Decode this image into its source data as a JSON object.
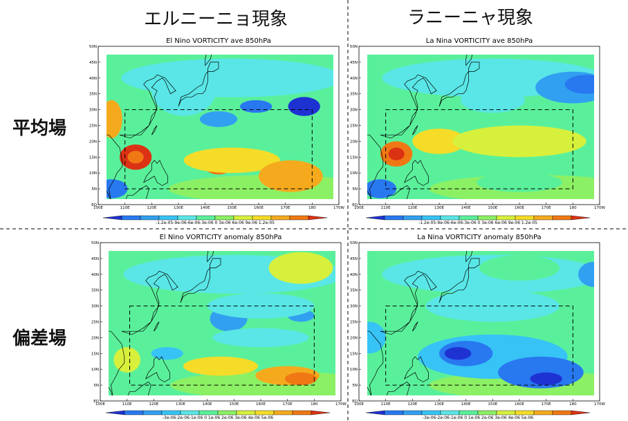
{
  "headers": {
    "col_left": "エルニーニョ現象",
    "col_right": "ラニーニャ現象",
    "row_top": "平均場",
    "row_bottom": "偏差場"
  },
  "colors": {
    "scale_a": [
      "#1e32d2",
      "#2878f0",
      "#32a0f0",
      "#37c3f5",
      "#5ae6e6",
      "#5af09b",
      "#8cf064",
      "#d7f03c",
      "#f5dc28",
      "#f5aa1e",
      "#f07814",
      "#dc3214"
    ],
    "scale_b": [
      "#1e32d2",
      "#2878f0",
      "#32a0f0",
      "#37c3f5",
      "#5ae6e6",
      "#5af09b",
      "#8cf064",
      "#d7f03c",
      "#f5dc28",
      "#f5aa1e",
      "#f07814",
      "#dc3214"
    ]
  },
  "chart_data": [
    {
      "type": "heatmap",
      "title": "El Nino VORTICITY ave 850hPa",
      "x_ticks": [
        "100E",
        "110E",
        "120E",
        "130E",
        "140E",
        "150E",
        "160E",
        "170E",
        "180",
        "170W"
      ],
      "y_ticks": [
        "EQ",
        "5N",
        "10N",
        "15N",
        "20N",
        "25N",
        "30N",
        "35N",
        "40N",
        "45N",
        "50N"
      ],
      "xlim": [
        100,
        190
      ],
      "ylim": [
        0,
        50
      ],
      "colorbar": [
        "-1.2e-05",
        "-9e-06",
        "-6e-06",
        "-3e-06",
        "0",
        "3e-06",
        "6e-06",
        "9e-06",
        "1.2e-05"
      ],
      "colorbar_label_text": "-1.2e-05-9e-06-6e-06-3e-06  0  3e-06 6e-06 9e-06 1.2e-05",
      "scale": "scale_a",
      "box": {
        "lon": [
          110,
          180
        ],
        "lat": [
          5,
          30
        ]
      },
      "features": [
        {
          "lon": 114,
          "lat": 15,
          "rx": 6,
          "ry": 4,
          "level": 11
        },
        {
          "lon": 114,
          "lat": 15,
          "rx": 3,
          "ry": 2,
          "level": 10
        },
        {
          "lon": 145,
          "lat": 12,
          "rx": 5,
          "ry": 2.5,
          "level": 10
        },
        {
          "lon": 150,
          "lat": 14,
          "rx": 18,
          "ry": 4,
          "level": 8
        },
        {
          "lon": 172,
          "lat": 9,
          "rx": 12,
          "ry": 5,
          "level": 9
        },
        {
          "lon": 145,
          "lat": 27,
          "rx": 7,
          "ry": 2.5,
          "level": 2
        },
        {
          "lon": 159,
          "lat": 31,
          "rx": 6,
          "ry": 2,
          "level": 1
        },
        {
          "lon": 177,
          "lat": 31,
          "rx": 6,
          "ry": 3,
          "level": 0
        },
        {
          "lon": 105,
          "lat": 5,
          "rx": 6,
          "ry": 3,
          "level": 1
        },
        {
          "lon": 132,
          "lat": 36,
          "rx": 12,
          "ry": 8,
          "level": 4
        },
        {
          "lon": 105,
          "lat": 27,
          "rx": 4,
          "ry": 6,
          "level": 9
        }
      ]
    },
    {
      "type": "heatmap",
      "title": "La Nina VORTICITY ave 850hPa",
      "x_ticks": [
        "100E",
        "110E",
        "120E",
        "130E",
        "140E",
        "150E",
        "160E",
        "170E",
        "180",
        "170W"
      ],
      "y_ticks": [
        "EQ",
        "5N",
        "10N",
        "15N",
        "20N",
        "25N",
        "30N",
        "35N",
        "40N",
        "45N",
        "50N"
      ],
      "xlim": [
        100,
        190
      ],
      "ylim": [
        0,
        50
      ],
      "colorbar": [
        "-1.2e-05",
        "-9e-06",
        "-6e-06",
        "-3e-06",
        "0",
        "3e-06",
        "6e-06",
        "9e-06",
        "1.2e-05"
      ],
      "colorbar_label_text": "-1.2e-05-9e-06-6e-06-3e-06  0  3e-06 6e-06 9e-06 1.2e-05",
      "scale": "scale_a",
      "box": {
        "lon": [
          110,
          180
        ],
        "lat": [
          5,
          30
        ]
      },
      "features": [
        {
          "lon": 114,
          "lat": 16,
          "rx": 6,
          "ry": 4,
          "level": 10
        },
        {
          "lon": 114,
          "lat": 16,
          "rx": 3,
          "ry": 2,
          "level": 11
        },
        {
          "lon": 130,
          "lat": 20,
          "rx": 10,
          "ry": 4,
          "level": 8
        },
        {
          "lon": 160,
          "lat": 20,
          "rx": 25,
          "ry": 5,
          "level": 7
        },
        {
          "lon": 180,
          "lat": 37,
          "rx": 14,
          "ry": 5,
          "level": 2
        },
        {
          "lon": 185,
          "lat": 38,
          "rx": 8,
          "ry": 3,
          "level": 1
        },
        {
          "lon": 160,
          "lat": 7,
          "rx": 16,
          "ry": 3,
          "level": 5
        },
        {
          "lon": 108,
          "lat": 5,
          "rx": 6,
          "ry": 3,
          "level": 1
        },
        {
          "lon": 150,
          "lat": 33,
          "rx": 12,
          "ry": 4,
          "level": 4
        }
      ]
    },
    {
      "type": "heatmap",
      "title": "El Nino VORTICITY anomaly 850hPa",
      "x_ticks": [
        "100E",
        "110E",
        "120E",
        "130E",
        "140E",
        "150E",
        "160E",
        "170E",
        "180",
        "170W"
      ],
      "y_ticks": [
        "EQ",
        "5N",
        "10N",
        "15N",
        "20N",
        "25N",
        "30N",
        "35N",
        "40N",
        "45N",
        "50N"
      ],
      "xlim": [
        100,
        190
      ],
      "ylim": [
        0,
        50
      ],
      "colorbar": [
        "-3e-06",
        "-2e-06",
        "-1e-06",
        "0",
        "1e-06",
        "2e-06",
        "3e-06",
        "4e-06",
        "5e-06"
      ],
      "colorbar_label_text": "-3e-06-2e-06-1e-06  0   1e-06 2e-06 3e-06 4e-06 5e-06",
      "scale": "scale_b",
      "box": {
        "lon": [
          111,
          180
        ],
        "lat": [
          5,
          30
        ]
      },
      "features": [
        {
          "lon": 148,
          "lat": 26,
          "rx": 7,
          "ry": 4,
          "level": 2
        },
        {
          "lon": 175,
          "lat": 27,
          "rx": 5,
          "ry": 2,
          "level": 2
        },
        {
          "lon": 160,
          "lat": 30,
          "rx": 20,
          "ry": 4,
          "level": 4
        },
        {
          "lon": 160,
          "lat": 20,
          "rx": 18,
          "ry": 3,
          "level": 4
        },
        {
          "lon": 170,
          "lat": 8,
          "rx": 12,
          "ry": 3,
          "level": 9
        },
        {
          "lon": 175,
          "lat": 7,
          "rx": 6,
          "ry": 2,
          "level": 10
        },
        {
          "lon": 145,
          "lat": 11,
          "rx": 14,
          "ry": 3,
          "level": 8
        },
        {
          "lon": 110,
          "lat": 13,
          "rx": 5,
          "ry": 4,
          "level": 7
        },
        {
          "lon": 125,
          "lat": 15,
          "rx": 6,
          "ry": 2,
          "level": 3
        },
        {
          "lon": 175,
          "lat": 42,
          "rx": 12,
          "ry": 5,
          "level": 7
        }
      ]
    },
    {
      "type": "heatmap",
      "title": "La Nina VORTICITY anomaly 850hPa",
      "x_ticks": [
        "100E",
        "110E",
        "120E",
        "130E",
        "140E",
        "150E",
        "160E",
        "170E",
        "180",
        "170W"
      ],
      "y_ticks": [
        "EQ",
        "5N",
        "10N",
        "15N",
        "20N",
        "25N",
        "30N",
        "35N",
        "40N",
        "45N",
        "50N"
      ],
      "xlim": [
        100,
        190
      ],
      "ylim": [
        0,
        50
      ],
      "colorbar": [
        "-3e-06",
        "-2e-06",
        "-1e-06",
        "0",
        "1e-06",
        "2e-06",
        "3e-06",
        "4e-06",
        "5e-06"
      ],
      "colorbar_label_text": "-3e-06-2e-06-1e-06  0   1e-06 2e-06 3e-06 4e-06 5e-06",
      "scale": "scale_b",
      "box": {
        "lon": [
          110,
          180
        ],
        "lat": [
          5,
          30
        ]
      },
      "features": [
        {
          "lon": 150,
          "lat": 14,
          "rx": 28,
          "ry": 7,
          "level": 3
        },
        {
          "lon": 140,
          "lat": 15,
          "rx": 10,
          "ry": 4,
          "level": 1
        },
        {
          "lon": 137,
          "lat": 15,
          "rx": 5,
          "ry": 2,
          "level": 0
        },
        {
          "lon": 168,
          "lat": 9,
          "rx": 16,
          "ry": 5,
          "level": 1
        },
        {
          "lon": 170,
          "lat": 7,
          "rx": 6,
          "ry": 2,
          "level": 0
        },
        {
          "lon": 104,
          "lat": 20,
          "rx": 6,
          "ry": 5,
          "level": 3
        },
        {
          "lon": 188,
          "lat": 40,
          "rx": 6,
          "ry": 4,
          "level": 2
        },
        {
          "lon": 150,
          "lat": 30,
          "rx": 25,
          "ry": 5,
          "level": 4
        },
        {
          "lon": 160,
          "lat": 42,
          "rx": 15,
          "ry": 4,
          "level": 5
        }
      ]
    }
  ]
}
